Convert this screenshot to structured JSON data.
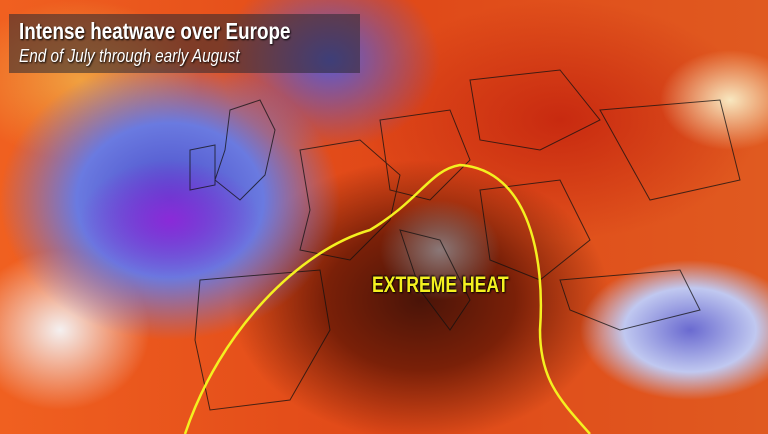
{
  "header": {
    "title": "Intense heatwave over Europe",
    "subtitle": "End of July through early August"
  },
  "map": {
    "region_label": "EXTREME HEAT",
    "colors": {
      "extreme_heat": "#4a1408",
      "heat": "#e04818",
      "cool": "#4a4ac8",
      "contour": "#f4f020"
    }
  }
}
